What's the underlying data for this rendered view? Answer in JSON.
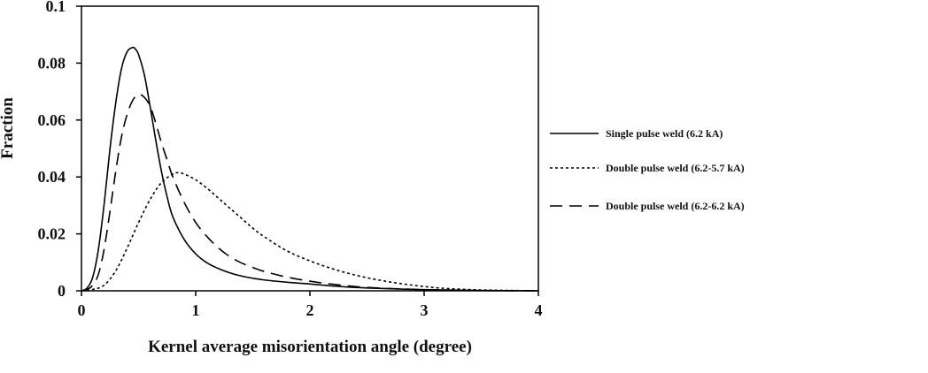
{
  "chart_data": {
    "type": "line",
    "title": "",
    "xlabel": "Kernel average misorientation angle (degree)",
    "ylabel": "Fraction",
    "xlim": [
      0,
      4
    ],
    "ylim": [
      0,
      0.1
    ],
    "xticks": [
      0,
      1,
      2,
      3,
      4
    ],
    "xtick_labels": [
      "0",
      "1",
      "2",
      "3",
      "4"
    ],
    "yticks": [
      0,
      0.02,
      0.04,
      0.06,
      0.08,
      0.1
    ],
    "ytick_labels": [
      "0",
      "0.02",
      "0.04",
      "0.06",
      "0.08",
      "0.1"
    ],
    "grid": false,
    "legend_position": "right",
    "series": [
      {
        "name": "Single pulse weld (6.2 kA)",
        "line_style": "solid",
        "color": "#000000",
        "x": [
          0,
          0.05,
          0.1,
          0.15,
          0.2,
          0.25,
          0.3,
          0.35,
          0.4,
          0.45,
          0.47,
          0.5,
          0.55,
          0.6,
          0.65,
          0.7,
          0.75,
          0.8,
          0.9,
          1.0,
          1.1,
          1.2,
          1.3,
          1.4,
          1.5,
          1.6,
          1.8,
          2.0,
          2.2,
          2.5,
          3.0,
          3.5,
          4.0
        ],
        "y": [
          0,
          0.001,
          0.005,
          0.015,
          0.031,
          0.05,
          0.066,
          0.078,
          0.084,
          0.0855,
          0.085,
          0.083,
          0.076,
          0.065,
          0.053,
          0.042,
          0.033,
          0.026,
          0.018,
          0.013,
          0.0098,
          0.0078,
          0.0063,
          0.0052,
          0.0044,
          0.0038,
          0.003,
          0.0024,
          0.0017,
          0.001,
          0.0004,
          0.0001,
          0
        ]
      },
      {
        "name": "Double pulse weld (6.2-5.7 kA)",
        "line_style": "dotted",
        "color": "#000000",
        "x": [
          0,
          0.1,
          0.2,
          0.3,
          0.4,
          0.5,
          0.6,
          0.7,
          0.8,
          0.85,
          0.9,
          1.0,
          1.1,
          1.2,
          1.3,
          1.4,
          1.5,
          1.6,
          1.8,
          2.0,
          2.2,
          2.4,
          2.6,
          2.8,
          3.0,
          3.2,
          3.5,
          4.0
        ],
        "y": [
          0,
          0.0005,
          0.002,
          0.007,
          0.015,
          0.024,
          0.032,
          0.038,
          0.041,
          0.0415,
          0.041,
          0.039,
          0.036,
          0.0325,
          0.029,
          0.0255,
          0.022,
          0.019,
          0.014,
          0.0105,
          0.0077,
          0.0055,
          0.0038,
          0.0025,
          0.0015,
          0.0008,
          0.0003,
          0
        ]
      },
      {
        "name": "Double pulse weld (6.2-6.2 kA)",
        "line_style": "dashed",
        "color": "#000000",
        "x": [
          0,
          0.05,
          0.1,
          0.15,
          0.2,
          0.25,
          0.3,
          0.35,
          0.4,
          0.45,
          0.5,
          0.55,
          0.6,
          0.65,
          0.7,
          0.75,
          0.8,
          0.9,
          1.0,
          1.1,
          1.2,
          1.3,
          1.4,
          1.5,
          1.6,
          1.8,
          2.0,
          2.2,
          2.5,
          3.0,
          3.5,
          4.0
        ],
        "y": [
          0,
          0.0005,
          0.002,
          0.006,
          0.015,
          0.028,
          0.042,
          0.054,
          0.062,
          0.067,
          0.069,
          0.068,
          0.065,
          0.059,
          0.052,
          0.046,
          0.04,
          0.031,
          0.024,
          0.019,
          0.015,
          0.012,
          0.0098,
          0.0082,
          0.0068,
          0.0048,
          0.0034,
          0.0023,
          0.0012,
          0.0004,
          0.0001,
          0
        ]
      }
    ]
  }
}
